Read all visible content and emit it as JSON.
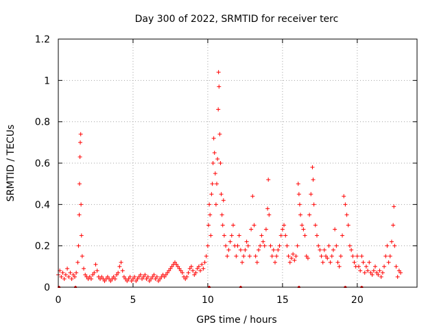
{
  "chart_data": {
    "type": "scatter",
    "title": "Day 300 of 2022, SRMTID for receiver terc",
    "xlabel": "GPS time / hours",
    "ylabel": "SRMTID / TECUs",
    "xlim": [
      0,
      24
    ],
    "ylim": [
      0,
      1.2
    ],
    "xticks": [
      0,
      5,
      10,
      15,
      20
    ],
    "xtick_labels": [
      "0",
      "5",
      "10",
      "15",
      "20"
    ],
    "yticks": [
      0,
      0.2,
      0.4,
      0.6,
      0.8,
      1,
      1.2
    ],
    "ytick_labels": [
      "0",
      "0.2",
      "0.4",
      "0.6",
      "0.8",
      "1",
      "1.2"
    ],
    "grid": true,
    "marker": "+",
    "color": "#ff0000",
    "series": [
      {
        "name": "SRMTID",
        "points": [
          [
            0.0,
            0.06
          ],
          [
            0.1,
            0.08
          ],
          [
            0.2,
            0.05
          ],
          [
            0.3,
            0.07
          ],
          [
            0.4,
            0.04
          ],
          [
            0.5,
            0.06
          ],
          [
            0.6,
            0.09
          ],
          [
            0.7,
            0.05
          ],
          [
            0.8,
            0.07
          ],
          [
            0.9,
            0.04
          ],
          [
            1.0,
            0.06
          ],
          [
            1.1,
            0.05
          ],
          [
            1.2,
            0.07
          ],
          [
            1.3,
            0.12
          ],
          [
            1.35,
            0.2
          ],
          [
            1.4,
            0.35
          ],
          [
            1.42,
            0.5
          ],
          [
            1.45,
            0.63
          ],
          [
            1.47,
            0.7
          ],
          [
            1.5,
            0.74
          ],
          [
            1.52,
            0.4
          ],
          [
            1.55,
            0.25
          ],
          [
            1.6,
            0.15
          ],
          [
            1.7,
            0.09
          ],
          [
            1.8,
            0.06
          ],
          [
            1.9,
            0.05
          ],
          [
            2.0,
            0.04
          ],
          [
            2.1,
            0.05
          ],
          [
            2.2,
            0.04
          ],
          [
            2.3,
            0.06
          ],
          [
            2.4,
            0.07
          ],
          [
            2.5,
            0.11
          ],
          [
            2.6,
            0.08
          ],
          [
            2.7,
            0.05
          ],
          [
            2.8,
            0.04
          ],
          [
            2.9,
            0.05
          ],
          [
            3.0,
            0.04
          ],
          [
            3.1,
            0.03
          ],
          [
            3.2,
            0.04
          ],
          [
            3.3,
            0.05
          ],
          [
            3.4,
            0.04
          ],
          [
            3.5,
            0.03
          ],
          [
            3.6,
            0.04
          ],
          [
            3.7,
            0.05
          ],
          [
            3.8,
            0.04
          ],
          [
            3.9,
            0.06
          ],
          [
            4.0,
            0.07
          ],
          [
            4.1,
            0.1
          ],
          [
            4.2,
            0.12
          ],
          [
            4.3,
            0.08
          ],
          [
            4.4,
            0.05
          ],
          [
            4.5,
            0.04
          ],
          [
            4.6,
            0.03
          ],
          [
            4.7,
            0.04
          ],
          [
            4.8,
            0.05
          ],
          [
            4.9,
            0.03
          ],
          [
            5.0,
            0.04
          ],
          [
            5.1,
            0.05
          ],
          [
            5.2,
            0.03
          ],
          [
            5.3,
            0.04
          ],
          [
            5.4,
            0.05
          ],
          [
            5.5,
            0.06
          ],
          [
            5.6,
            0.04
          ],
          [
            5.7,
            0.05
          ],
          [
            5.8,
            0.06
          ],
          [
            5.9,
            0.04
          ],
          [
            6.0,
            0.05
          ],
          [
            6.1,
            0.03
          ],
          [
            6.2,
            0.04
          ],
          [
            6.3,
            0.05
          ],
          [
            6.4,
            0.06
          ],
          [
            6.5,
            0.04
          ],
          [
            6.6,
            0.05
          ],
          [
            6.7,
            0.03
          ],
          [
            6.8,
            0.04
          ],
          [
            6.9,
            0.05
          ],
          [
            7.0,
            0.06
          ],
          [
            7.1,
            0.05
          ],
          [
            7.2,
            0.06
          ],
          [
            7.3,
            0.07
          ],
          [
            7.4,
            0.08
          ],
          [
            7.5,
            0.09
          ],
          [
            7.6,
            0.1
          ],
          [
            7.7,
            0.11
          ],
          [
            7.8,
            0.12
          ],
          [
            7.9,
            0.11
          ],
          [
            8.0,
            0.1
          ],
          [
            8.1,
            0.09
          ],
          [
            8.2,
            0.08
          ],
          [
            8.3,
            0.07
          ],
          [
            8.4,
            0.05
          ],
          [
            8.5,
            0.04
          ],
          [
            8.6,
            0.05
          ],
          [
            8.7,
            0.07
          ],
          [
            8.8,
            0.09
          ],
          [
            8.9,
            0.1
          ],
          [
            9.0,
            0.08
          ],
          [
            9.1,
            0.06
          ],
          [
            9.2,
            0.07
          ],
          [
            9.3,
            0.09
          ],
          [
            9.4,
            0.1
          ],
          [
            9.5,
            0.08
          ],
          [
            9.6,
            0.11
          ],
          [
            9.7,
            0.09
          ],
          [
            9.8,
            0.12
          ],
          [
            9.9,
            0.15
          ],
          [
            10.0,
            0.2
          ],
          [
            10.05,
            0.3
          ],
          [
            10.1,
            0.4
          ],
          [
            10.15,
            0.35
          ],
          [
            10.2,
            0.25
          ],
          [
            10.25,
            0.45
          ],
          [
            10.3,
            0.5
          ],
          [
            10.35,
            0.6
          ],
          [
            10.4,
            0.72
          ],
          [
            10.45,
            0.65
          ],
          [
            10.5,
            0.55
          ],
          [
            10.55,
            0.4
          ],
          [
            10.6,
            0.5
          ],
          [
            10.65,
            0.62
          ],
          [
            10.7,
            0.86
          ],
          [
            10.72,
            1.04
          ],
          [
            10.75,
            0.97
          ],
          [
            10.8,
            0.74
          ],
          [
            10.85,
            0.6
          ],
          [
            10.9,
            0.45
          ],
          [
            10.95,
            0.35
          ],
          [
            11.0,
            0.3
          ],
          [
            11.05,
            0.42
          ],
          [
            11.1,
            0.25
          ],
          [
            11.2,
            0.2
          ],
          [
            11.3,
            0.15
          ],
          [
            11.4,
            0.18
          ],
          [
            11.5,
            0.22
          ],
          [
            11.6,
            0.25
          ],
          [
            11.7,
            0.3
          ],
          [
            11.8,
            0.2
          ],
          [
            11.9,
            0.15
          ],
          [
            12.0,
            0.2
          ],
          [
            12.1,
            0.25
          ],
          [
            12.2,
            0.18
          ],
          [
            12.3,
            0.12
          ],
          [
            12.4,
            0.15
          ],
          [
            12.5,
            0.18
          ],
          [
            12.6,
            0.22
          ],
          [
            12.7,
            0.2
          ],
          [
            12.8,
            0.15
          ],
          [
            12.9,
            0.28
          ],
          [
            13.0,
            0.44
          ],
          [
            13.1,
            0.3
          ],
          [
            13.2,
            0.15
          ],
          [
            13.3,
            0.12
          ],
          [
            13.4,
            0.18
          ],
          [
            13.5,
            0.2
          ],
          [
            13.6,
            0.25
          ],
          [
            13.7,
            0.22
          ],
          [
            13.8,
            0.2
          ],
          [
            13.9,
            0.28
          ],
          [
            14.0,
            0.38
          ],
          [
            14.05,
            0.52
          ],
          [
            14.1,
            0.35
          ],
          [
            14.2,
            0.2
          ],
          [
            14.3,
            0.15
          ],
          [
            14.4,
            0.18
          ],
          [
            14.5,
            0.12
          ],
          [
            14.6,
            0.15
          ],
          [
            14.7,
            0.18
          ],
          [
            14.8,
            0.2
          ],
          [
            14.9,
            0.25
          ],
          [
            15.0,
            0.28
          ],
          [
            15.1,
            0.3
          ],
          [
            15.2,
            0.25
          ],
          [
            15.3,
            0.2
          ],
          [
            15.4,
            0.15
          ],
          [
            15.5,
            0.12
          ],
          [
            15.6,
            0.14
          ],
          [
            15.7,
            0.16
          ],
          [
            15.8,
            0.13
          ],
          [
            15.9,
            0.15
          ],
          [
            16.0,
            0.2
          ],
          [
            16.05,
            0.5
          ],
          [
            16.1,
            0.45
          ],
          [
            16.15,
            0.4
          ],
          [
            16.2,
            0.35
          ],
          [
            16.3,
            0.3
          ],
          [
            16.4,
            0.28
          ],
          [
            16.5,
            0.25
          ],
          [
            16.6,
            0.15
          ],
          [
            16.7,
            0.14
          ],
          [
            16.8,
            0.35
          ],
          [
            16.9,
            0.45
          ],
          [
            17.0,
            0.58
          ],
          [
            17.05,
            0.52
          ],
          [
            17.1,
            0.4
          ],
          [
            17.2,
            0.3
          ],
          [
            17.3,
            0.25
          ],
          [
            17.4,
            0.2
          ],
          [
            17.5,
            0.18
          ],
          [
            17.6,
            0.15
          ],
          [
            17.7,
            0.12
          ],
          [
            17.8,
            0.18
          ],
          [
            17.9,
            0.15
          ],
          [
            18.0,
            0.14
          ],
          [
            18.1,
            0.2
          ],
          [
            18.2,
            0.12
          ],
          [
            18.3,
            0.15
          ],
          [
            18.4,
            0.18
          ],
          [
            18.5,
            0.28
          ],
          [
            18.6,
            0.2
          ],
          [
            18.7,
            0.12
          ],
          [
            18.8,
            0.1
          ],
          [
            18.9,
            0.15
          ],
          [
            19.0,
            0.25
          ],
          [
            19.1,
            0.44
          ],
          [
            19.2,
            0.4
          ],
          [
            19.3,
            0.35
          ],
          [
            19.4,
            0.3
          ],
          [
            19.5,
            0.2
          ],
          [
            19.6,
            0.18
          ],
          [
            19.7,
            0.15
          ],
          [
            19.8,
            0.12
          ],
          [
            19.9,
            0.1
          ],
          [
            20.0,
            0.15
          ],
          [
            20.1,
            0.1
          ],
          [
            20.2,
            0.08
          ],
          [
            20.3,
            0.15
          ],
          [
            20.4,
            0.12
          ],
          [
            20.5,
            0.07
          ],
          [
            20.6,
            0.1
          ],
          [
            20.7,
            0.08
          ],
          [
            20.8,
            0.12
          ],
          [
            20.9,
            0.07
          ],
          [
            21.0,
            0.06
          ],
          [
            21.1,
            0.08
          ],
          [
            21.2,
            0.1
          ],
          [
            21.3,
            0.07
          ],
          [
            21.4,
            0.06
          ],
          [
            21.5,
            0.08
          ],
          [
            21.6,
            0.05
          ],
          [
            21.7,
            0.07
          ],
          [
            21.8,
            0.1
          ],
          [
            21.9,
            0.15
          ],
          [
            22.0,
            0.2
          ],
          [
            22.1,
            0.12
          ],
          [
            22.2,
            0.15
          ],
          [
            22.3,
            0.22
          ],
          [
            22.4,
            0.3
          ],
          [
            22.45,
            0.39
          ],
          [
            22.5,
            0.2
          ],
          [
            22.6,
            0.1
          ],
          [
            22.7,
            0.05
          ],
          [
            22.8,
            0.08
          ],
          [
            22.9,
            0.07
          ]
        ]
      }
    ],
    "zero_markers_x": [
      0.05,
      1.15,
      10.1,
      12.2,
      16.1,
      19.2,
      20.3
    ]
  }
}
